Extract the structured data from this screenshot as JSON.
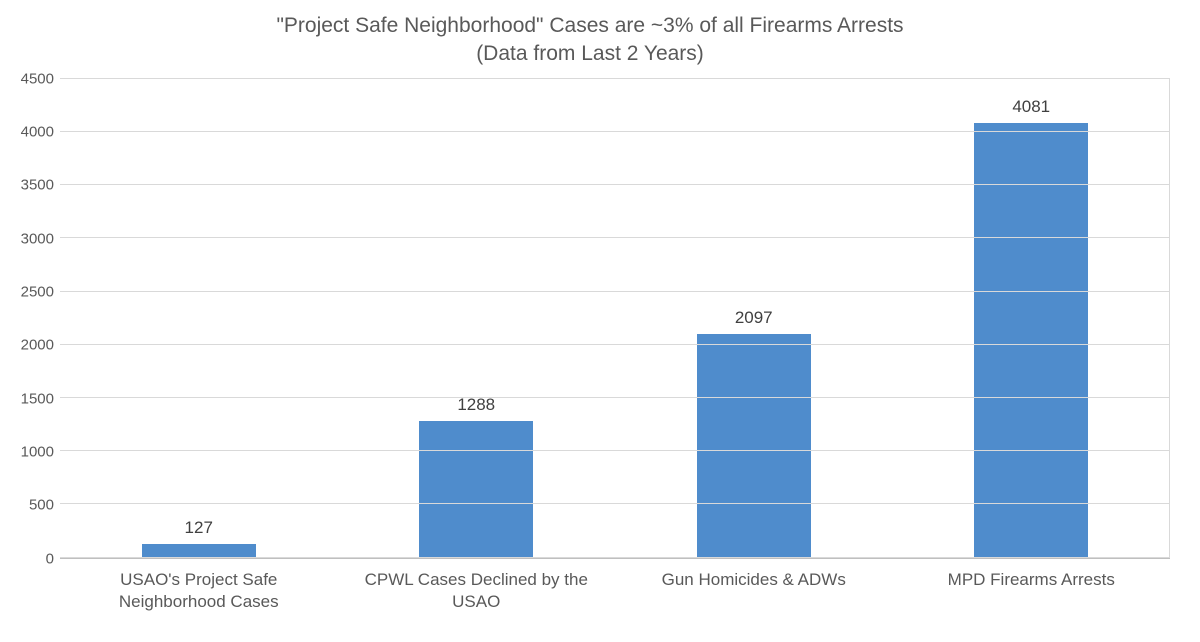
{
  "chart": {
    "type": "bar",
    "title_line1": "\"Project Safe Neighborhood\" Cases are ~3% of all Firearms Arrests",
    "title_line2": "(Data from Last 2 Years)",
    "title_fontsize": 21,
    "title_color": "#595959",
    "categories": [
      "USAO's Project Safe Neighborhood Cases",
      "CPWL Cases Declined by the USAO",
      "Gun Homicides & ADWs",
      "MPD Firearms Arrests"
    ],
    "values": [
      127,
      1288,
      2097,
      4081
    ],
    "bar_color": "#4f8ccc",
    "bar_width_ratio": 0.41,
    "ylim": [
      0,
      4500
    ],
    "ytick_step": 500,
    "yticks": [
      0,
      500,
      1000,
      1500,
      2000,
      2500,
      3000,
      3500,
      4000,
      4500
    ],
    "axis_label_fontsize": 15,
    "x_label_fontsize": 17,
    "data_label_fontsize": 17,
    "axis_label_color": "#595959",
    "data_label_color": "#404040",
    "background_color": "#ffffff",
    "grid_color": "#d9d9d9",
    "axis_line_color": "#bfbfbf",
    "grid": true
  }
}
